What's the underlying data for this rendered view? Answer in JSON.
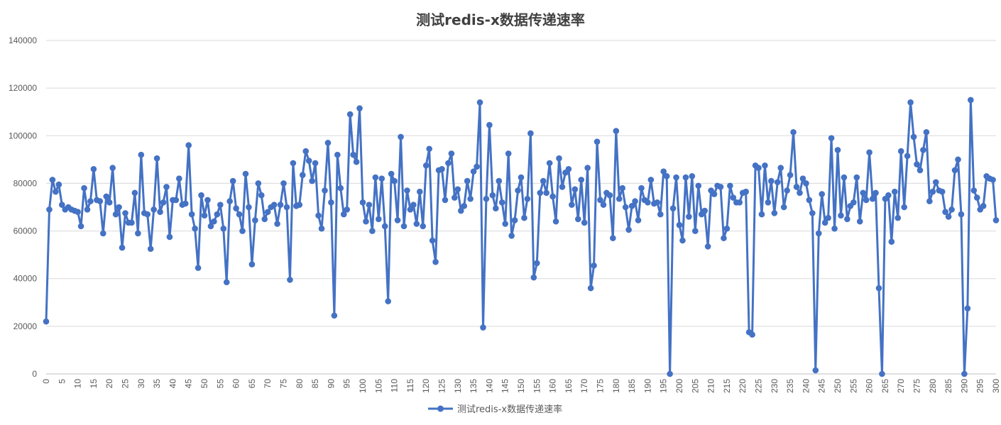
{
  "chart_data": {
    "type": "line",
    "title": "测试redis-x数据传递速率",
    "xlabel": "",
    "ylabel": "",
    "xlim": [
      0,
      300
    ],
    "ylim": [
      0,
      140000
    ],
    "y_ticks": [
      0,
      20000,
      40000,
      60000,
      80000,
      100000,
      120000,
      140000
    ],
    "x_ticks": [
      0,
      5,
      10,
      15,
      20,
      25,
      30,
      35,
      40,
      45,
      50,
      55,
      60,
      65,
      70,
      75,
      80,
      85,
      90,
      95,
      100,
      105,
      110,
      115,
      120,
      125,
      130,
      135,
      140,
      145,
      150,
      155,
      160,
      165,
      170,
      175,
      180,
      185,
      190,
      195,
      200,
      205,
      210,
      215,
      220,
      225,
      230,
      235,
      240,
      245,
      250,
      255,
      260,
      265,
      270,
      275,
      280,
      285,
      290,
      295,
      300
    ],
    "grid": "horizontal",
    "legend_position": "bottom",
    "series": [
      {
        "name": "测试redis-x数据传递速率",
        "color": "#4472C4",
        "values": [
          22000,
          69000,
          81500,
          76500,
          79500,
          71000,
          69000,
          70000,
          69000,
          68500,
          68000,
          62000,
          78000,
          69000,
          72500,
          86000,
          73000,
          72500,
          59000,
          74500,
          72000,
          86500,
          67000,
          70000,
          53000,
          67500,
          63500,
          63500,
          76000,
          59000,
          92000,
          67500,
          67000,
          52500,
          69000,
          90500,
          68000,
          72000,
          78500,
          57500,
          73000,
          73000,
          82000,
          71000,
          71500,
          96000,
          67000,
          61000,
          44500,
          75000,
          66500,
          73000,
          62000,
          64000,
          67000,
          71000,
          61000,
          38500,
          72500,
          81000,
          69500,
          67000,
          60000,
          84000,
          70000,
          46000,
          64500,
          80000,
          75000,
          65000,
          68000,
          70000,
          71000,
          63000,
          71000,
          80000,
          70000,
          39500,
          88500,
          70500,
          71000,
          83500,
          93500,
          89500,
          81000,
          88500,
          66500,
          61000,
          77000,
          97000,
          72000,
          24500,
          92000,
          78000,
          67000,
          69000,
          109000,
          92000,
          89000,
          111500,
          72000,
          64000,
          71000,
          60000,
          82500,
          65000,
          82000,
          62000,
          30500,
          84000,
          81000,
          64500,
          99500,
          62000,
          77000,
          69000,
          71000,
          63000,
          76500,
          62000,
          87500,
          94500,
          56000,
          47000,
          85500,
          86000,
          73000,
          88500,
          92500,
          74000,
          77500,
          68500,
          70500,
          81000,
          73500,
          85000,
          87000,
          114000,
          19500,
          73500,
          104500,
          75000,
          69500,
          81000,
          72000,
          63000,
          92500,
          58000,
          64500,
          77000,
          82500,
          65500,
          73500,
          101000,
          40500,
          46500,
          76000,
          81000,
          76000,
          88500,
          74500,
          64000,
          90500,
          78500,
          84500,
          86000,
          71000,
          77500,
          65000,
          81500,
          63500,
          86500,
          36000,
          45500,
          97500,
          73000,
          71000,
          76000,
          75000,
          57000,
          102000,
          73500,
          78000,
          70000,
          60500,
          70500,
          72500,
          64500,
          78000,
          73000,
          72000,
          81500,
          71500,
          72000,
          67000,
          85000,
          83000,
          0,
          69500,
          82500,
          62500,
          56000,
          82500,
          66000,
          83000,
          60000,
          79000,
          67000,
          68500,
          53500,
          77000,
          75500,
          79000,
          78500,
          57000,
          61000,
          79000,
          74000,
          72000,
          72000,
          76000,
          76500,
          17500,
          16500,
          87500,
          86500,
          67000,
          87500,
          72000,
          81000,
          67500,
          80500,
          86500,
          70000,
          77000,
          83500,
          101500,
          78500,
          76000,
          82000,
          80000,
          73000,
          67500,
          1500,
          59000,
          75500,
          63500,
          65500,
          99000,
          61000,
          94000,
          66500,
          82500,
          65000,
          70500,
          72000,
          82500,
          64000,
          76000,
          73000,
          93000,
          73500,
          76000,
          36000,
          0,
          73500,
          75000,
          55500,
          76500,
          65500,
          93500,
          70000,
          91500,
          114000,
          99500,
          88000,
          85500,
          94000,
          101500,
          72500,
          76500,
          80500,
          77000,
          76500,
          68000,
          66000,
          69000,
          85500,
          90000,
          67000,
          0,
          27500,
          115000,
          77000,
          74000,
          69000,
          70500,
          83000,
          82000,
          81500,
          64500
        ]
      }
    ]
  }
}
